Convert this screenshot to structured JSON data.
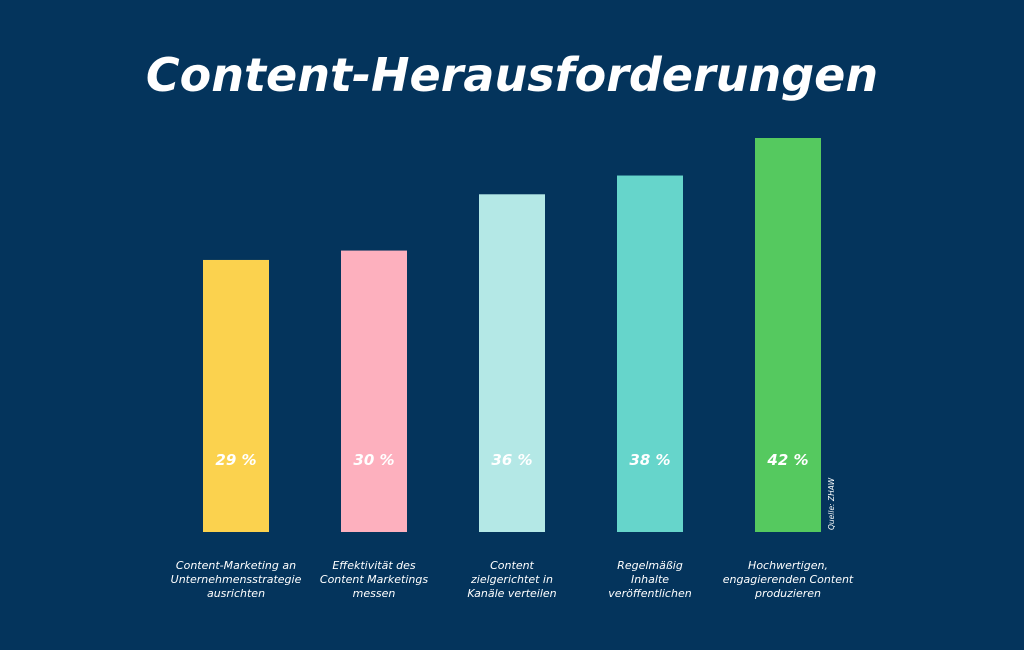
{
  "chart_data": {
    "type": "bar",
    "title": "Content-Herausforderungen",
    "categories": [
      "Content-Marketing an Unternehmensstrategie ausrichten",
      "Effektivität des Content Marketings messen",
      "Content zielgerichtet in Kanäle verteilen",
      "Regelmäßig Inhalte veröffentlichen",
      "Hochwertigen, engagierenden Content produzieren"
    ],
    "category_lines": [
      [
        "Content-Marketing an",
        "Unternehmensstrategie",
        "ausrichten"
      ],
      [
        "Effektivität des",
        "Content Marketings",
        "messen"
      ],
      [
        "Content",
        "zielgerichtet in",
        "Kanäle verteilen"
      ],
      [
        "Regelmäßig",
        "Inhalte",
        "veröffentlichen"
      ],
      [
        "Hochwertigen,",
        "engagierenden Content",
        "produzieren"
      ]
    ],
    "values": [
      29,
      30,
      36,
      38,
      42
    ],
    "value_labels": [
      "29 %",
      "30 %",
      "36 %",
      "38 %",
      "42 %"
    ],
    "bar_colors": [
      "#fbd24e",
      "#fdb0be",
      "#b4e8e6",
      "#66d5cb",
      "#55c95f"
    ],
    "ylim": [
      0,
      42
    ],
    "grid": false,
    "source": "Quelle: ZHAW"
  }
}
